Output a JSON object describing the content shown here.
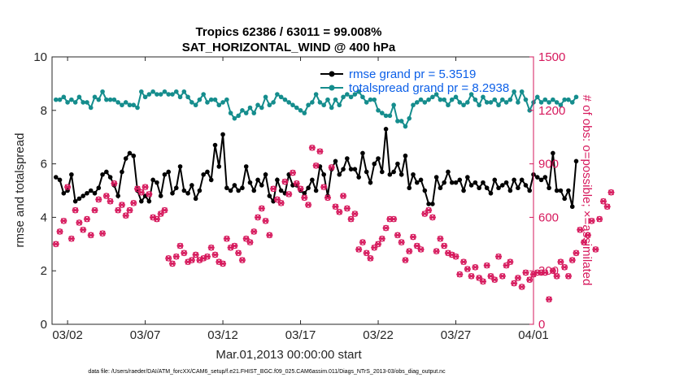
{
  "colors": {
    "rmse": "#000000",
    "totalspread": "#158d8d",
    "obs_possible": "#d6185c",
    "obs_assimilated": "#d6185c",
    "legend_text": "#0b5fe8",
    "right_axis": "#d6185c"
  },
  "chart_data": {
    "type": "line",
    "title": "Tropics 62386 / 63011 = 99.008%",
    "subtitle": "SAT_HORIZONTAL_WIND @ 400 hPa",
    "xlabel": "Mar.01,2013 00:00:00 start",
    "ylabel": "rmse and totalspread",
    "ylabel_right": "# of obs: o=possible; ×=assimilated",
    "xlim": [
      1,
      32
    ],
    "ylim": [
      0,
      10
    ],
    "ylim_right": [
      0,
      1500
    ],
    "x_ticks": [
      2,
      7,
      12,
      17,
      22,
      27,
      32
    ],
    "x_tick_labels": [
      "03/02",
      "03/07",
      "03/12",
      "03/17",
      "03/22",
      "03/27",
      "04/01"
    ],
    "y_ticks": [
      0,
      2,
      4,
      6,
      8,
      10
    ],
    "y_tick_labels": [
      "0",
      "2",
      "4",
      "6",
      "8",
      "10"
    ],
    "y_right_ticks": [
      0,
      300,
      600,
      900,
      1200,
      1500
    ],
    "y_right_tick_labels": [
      "0",
      "300",
      "600",
      "900",
      "1200",
      "1500"
    ],
    "legend": [
      {
        "name": "rmse grand pr =  5.3519",
        "series": "rmse"
      },
      {
        "name": "totalspread grand pr =  8.2938",
        "series": "totalspread"
      }
    ],
    "legend_location": "top-right",
    "footer": "data file: /Users/raeder/DAI/ATM_forcXX/CAM6_setup/f.e21.FHIST_BGC.f09_025.CAM6assim.011/Diags_NTrS_2013-03/obs_diag_output.nc",
    "series": [
      {
        "name": "rmse",
        "axis": "left",
        "x_start": 1.25,
        "x_step": 0.25,
        "values": [
          5.5,
          5.4,
          4.9,
          5.0,
          5.6,
          4.6,
          4.7,
          4.8,
          4.9,
          5.0,
          4.9,
          5.1,
          5.6,
          5.7,
          5.5,
          5.2,
          4.8,
          5.7,
          6.2,
          6.4,
          6.3,
          5.0,
          4.6,
          4.8,
          4.6,
          5.4,
          5.3,
          4.8,
          5.6,
          5.7,
          4.9,
          5.1,
          5.9,
          5.0,
          4.9,
          5.2,
          4.7,
          5.0,
          5.6,
          5.7,
          5.4,
          6.7,
          5.9,
          7.1,
          5.1,
          5.0,
          5.2,
          5.0,
          5.1,
          5.9,
          5.3,
          5.0,
          5.4,
          5.2,
          5.6,
          4.8,
          4.6,
          5.4,
          5.0,
          4.9,
          5.6,
          5.2,
          5.2,
          5.0,
          4.9,
          5.1,
          5.4,
          5.0,
          5.9,
          5.6,
          4.8,
          5.8,
          6.1,
          5.6,
          5.8,
          6.2,
          5.8,
          5.8,
          5.5,
          6.4,
          5.7,
          5.3,
          6.0,
          6.2,
          5.7,
          7.3,
          5.6,
          5.7,
          6.0,
          5.6,
          6.3,
          5.1,
          5.6,
          5.3,
          5.4,
          5.0,
          4.5,
          4.5,
          5.5,
          5.1,
          5.3,
          5.7,
          5.3,
          5.3,
          5.4,
          5.0,
          5.5,
          5.2,
          5.3,
          5.1,
          5.3,
          5.1,
          4.9,
          5.4,
          5.1,
          5.2,
          5.3,
          5.0,
          5.4,
          5.1,
          5.4,
          5.2,
          5.0,
          5.6,
          5.5,
          5.4,
          5.5,
          5.1,
          6.4,
          5.0,
          5.0,
          4.7,
          5.0,
          4.4,
          6.1
        ]
      },
      {
        "name": "totalspread",
        "axis": "left",
        "x_start": 1.25,
        "x_step": 0.25,
        "values": [
          8.4,
          8.4,
          8.5,
          8.3,
          8.4,
          8.3,
          8.5,
          8.3,
          8.3,
          8.1,
          8.5,
          8.4,
          8.7,
          8.4,
          8.4,
          8.4,
          8.3,
          8.2,
          8.3,
          8.2,
          8.2,
          8.1,
          8.7,
          8.5,
          8.6,
          8.7,
          8.6,
          8.6,
          8.7,
          8.6,
          8.6,
          8.7,
          8.5,
          8.7,
          8.5,
          8.3,
          8.2,
          8.4,
          8.6,
          8.3,
          8.4,
          8.4,
          8.2,
          8.3,
          8.4,
          7.9,
          7.7,
          7.8,
          8.0,
          7.9,
          8.1,
          7.9,
          8.2,
          8.1,
          8.5,
          8.2,
          8.3,
          8.6,
          8.5,
          8.4,
          8.3,
          8.2,
          8.1,
          8.0,
          7.9,
          8.2,
          8.3,
          8.6,
          8.3,
          8.2,
          8.4,
          8.1,
          8.4,
          8.2,
          8.5,
          8.6,
          8.5,
          8.6,
          8.7,
          8.5,
          8.3,
          8.4,
          8.4,
          8.0,
          7.9,
          7.8,
          7.8,
          8.2,
          7.6,
          7.6,
          7.4,
          7.7,
          8.2,
          8.3,
          8.4,
          8.3,
          8.4,
          8.5,
          8.6,
          8.4,
          8.4,
          8.2,
          8.4,
          8.5,
          8.3,
          8.2,
          8.3,
          8.6,
          8.4,
          8.2,
          8.5,
          8.3,
          8.3,
          8.4,
          8.2,
          8.4,
          8.3,
          8.4,
          8.7,
          8.3,
          8.7,
          8.4,
          8.0,
          8.3,
          8.5,
          8.3,
          8.4,
          8.3,
          8.4,
          8.3,
          8.2,
          8.4,
          8.4,
          8.3,
          8.5
        ]
      },
      {
        "name": "obs_possible",
        "axis": "right",
        "x_start": 1.25,
        "x_step": 0.25,
        "values": [
          450,
          520,
          580,
          770,
          480,
          640,
          570,
          530,
          590,
          500,
          640,
          700,
          510,
          720,
          690,
          790,
          640,
          670,
          610,
          640,
          680,
          760,
          740,
          770,
          730,
          600,
          590,
          620,
          640,
          370,
          340,
          380,
          440,
          400,
          350,
          360,
          390,
          360,
          370,
          380,
          430,
          390,
          350,
          340,
          480,
          430,
          440,
          400,
          360,
          480,
          460,
          520,
          600,
          650,
          580,
          500,
          760,
          700,
          680,
          800,
          730,
          850,
          790,
          760,
          710,
          670,
          990,
          890,
          970,
          770,
          710,
          880,
          660,
          630,
          720,
          650,
          590,
          620,
          420,
          460,
          400,
          370,
          430,
          450,
          480,
          540,
          590,
          590,
          500,
          460,
          360,
          410,
          490,
          440,
          420,
          620,
          640,
          600,
          410,
          480,
          440,
          400,
          390,
          380,
          280,
          350,
          310,
          270,
          320,
          260,
          240,
          330,
          270,
          250,
          380,
          270,
          330,
          350,
          230,
          260,
          210,
          290,
          250,
          280,
          290,
          290,
          290,
          140,
          300,
          270,
          350,
          320,
          270,
          360,
          400,
          530,
          460,
          500,
          580,
          420,
          590,
          690,
          660,
          740
        ]
      },
      {
        "name": "obs_assimilated",
        "axis": "right",
        "x_start": 1.25,
        "x_step": 0.25,
        "values": [
          450,
          520,
          580,
          770,
          480,
          640,
          570,
          530,
          590,
          500,
          640,
          700,
          510,
          720,
          690,
          790,
          640,
          670,
          610,
          640,
          680,
          760,
          740,
          770,
          730,
          600,
          590,
          620,
          640,
          370,
          340,
          380,
          440,
          400,
          350,
          360,
          390,
          360,
          370,
          380,
          430,
          390,
          350,
          340,
          480,
          430,
          440,
          400,
          360,
          480,
          460,
          520,
          600,
          650,
          580,
          500,
          760,
          700,
          680,
          800,
          730,
          850,
          790,
          760,
          710,
          670,
          990,
          890,
          970,
          770,
          710,
          880,
          660,
          630,
          720,
          650,
          590,
          620,
          420,
          460,
          400,
          370,
          430,
          450,
          480,
          540,
          590,
          590,
          500,
          460,
          360,
          410,
          490,
          440,
          420,
          620,
          640,
          600,
          410,
          480,
          440,
          400,
          390,
          380,
          280,
          350,
          310,
          270,
          320,
          260,
          240,
          330,
          270,
          250,
          380,
          270,
          330,
          350,
          230,
          260,
          210,
          290,
          250,
          280,
          290,
          290,
          290,
          140,
          300,
          270,
          350,
          320,
          270,
          360,
          400,
          530,
          460,
          500,
          580,
          420,
          590,
          690,
          660,
          740
        ]
      }
    ]
  }
}
